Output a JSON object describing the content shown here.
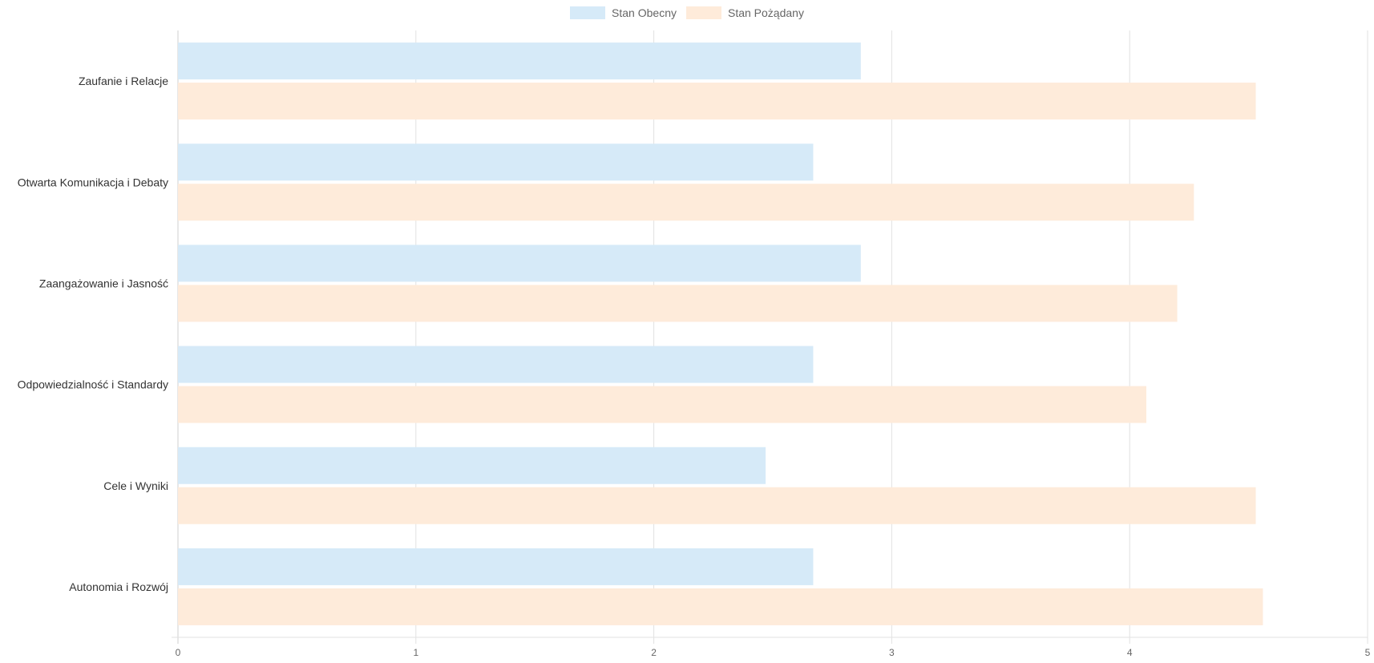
{
  "chart_data": {
    "type": "bar",
    "orientation": "horizontal",
    "categories": [
      "Zaufanie i Relacje",
      "Otwarta Komunikacja i Debaty",
      "Zaangażowanie i Jasność",
      "Odpowiedzialność i Standardy",
      "Cele i Wyniki",
      "Autonomia i Rozwój"
    ],
    "series": [
      {
        "name": "Stan Obecny",
        "values": [
          2.87,
          2.67,
          2.87,
          2.67,
          2.47,
          2.67
        ],
        "color": "#d6eaf8"
      },
      {
        "name": "Stan Pożądany",
        "values": [
          4.53,
          4.27,
          4.2,
          4.07,
          4.53,
          4.56
        ],
        "color": "#feebda"
      }
    ],
    "xlim": [
      0,
      5
    ],
    "x_ticks": [
      "0",
      "1",
      "2",
      "3",
      "4",
      "5"
    ],
    "grid": true,
    "legend_position": "top",
    "title": "",
    "xlabel": "",
    "ylabel": ""
  }
}
